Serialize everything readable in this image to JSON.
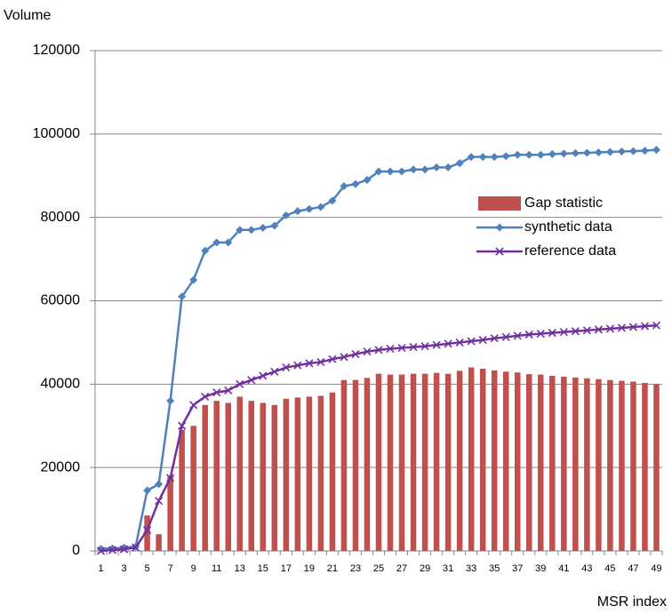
{
  "chart_data": {
    "type": "bar",
    "y_label": "Volume",
    "x_label": "MSR index",
    "categories": [
      1,
      null,
      3,
      null,
      5,
      null,
      7,
      null,
      9,
      null,
      11,
      null,
      13,
      null,
      15,
      null,
      17,
      null,
      19,
      null,
      21,
      null,
      23,
      null,
      25,
      null,
      27,
      null,
      29,
      null,
      31,
      null,
      33,
      null,
      35,
      null,
      37,
      null,
      39,
      null,
      41,
      null,
      43,
      null,
      45,
      null,
      47,
      null,
      49
    ],
    "series": [
      {
        "name": "Gap statistic",
        "type": "bar",
        "color": "#c0504d",
        "values": [
          0,
          0,
          0,
          0,
          8500,
          4000,
          18000,
          29000,
          30000,
          35000,
          36000,
          35500,
          37000,
          36000,
          35500,
          35000,
          36500,
          36800,
          37000,
          37200,
          38000,
          41000,
          41000,
          41500,
          42500,
          42300,
          42300,
          42500,
          42500,
          42700,
          42500,
          43200,
          44000,
          43700,
          43300,
          43000,
          42800,
          42400,
          42300,
          42000,
          41800,
          41600,
          41400,
          41200,
          41000,
          40800,
          40600,
          40300,
          40000
        ]
      },
      {
        "name": "synthetic data",
        "type": "line",
        "marker": "diamond",
        "color": "#4f81bd",
        "values": [
          500,
          600,
          800,
          1000,
          14500,
          16000,
          36000,
          61000,
          65000,
          72000,
          74000,
          74000,
          77000,
          77000,
          77500,
          78000,
          80500,
          81500,
          82000,
          82500,
          84000,
          87500,
          88000,
          89000,
          91000,
          91000,
          91000,
          91500,
          91500,
          92000,
          92000,
          93000,
          94500,
          94500,
          94500,
          94700,
          95000,
          95000,
          95000,
          95200,
          95300,
          95400,
          95500,
          95600,
          95700,
          95800,
          95900,
          96000,
          96200
        ]
      },
      {
        "name": "reference data",
        "type": "line",
        "marker": "x",
        "color": "#7030a0",
        "values": [
          0,
          200,
          400,
          800,
          5000,
          12000,
          17500,
          30000,
          35000,
          37000,
          38000,
          38500,
          40000,
          41000,
          42000,
          43000,
          44000,
          44500,
          45000,
          45300,
          46000,
          46500,
          47200,
          47800,
          48200,
          48500,
          48700,
          48900,
          49100,
          49400,
          49700,
          50000,
          50300,
          50600,
          51000,
          51300,
          51600,
          51900,
          52100,
          52300,
          52500,
          52700,
          52900,
          53100,
          53300,
          53500,
          53700,
          53900,
          54100
        ]
      }
    ],
    "ylim": [
      0,
      120000
    ],
    "yticks": [
      0,
      20000,
      40000,
      60000,
      80000,
      100000,
      120000
    ],
    "grid": true,
    "legend": "right"
  }
}
